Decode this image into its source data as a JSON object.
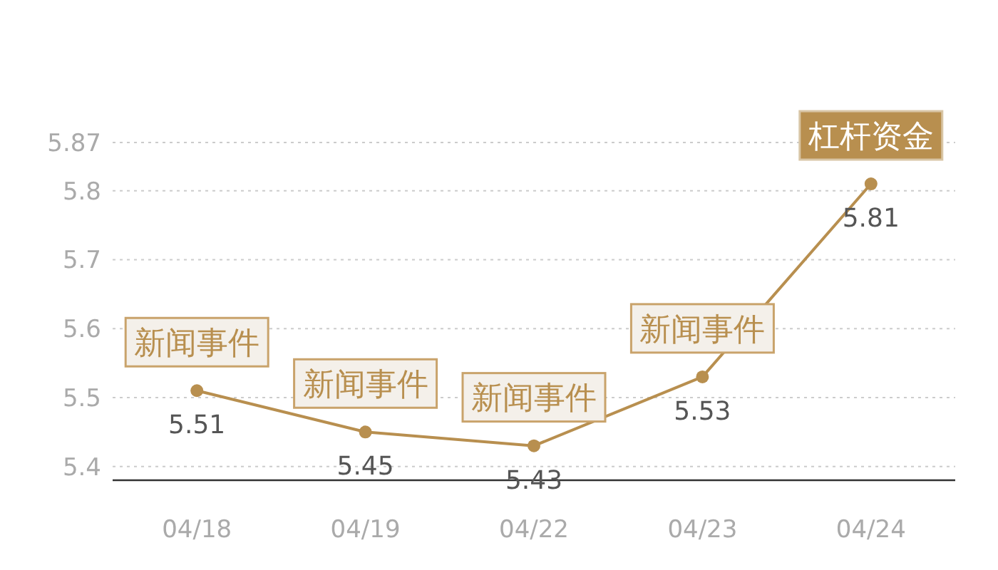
{
  "chart_data": {
    "type": "line",
    "categories": [
      "04/18",
      "04/19",
      "04/22",
      "04/23",
      "04/24"
    ],
    "series": [
      {
        "color": "#b88f4f",
        "values": [
          5.51,
          5.45,
          5.43,
          5.53,
          5.81
        ]
      }
    ],
    "ylim": [
      5.38,
      5.87
    ],
    "yticks": [
      5.4,
      5.5,
      5.6,
      5.7,
      5.8,
      5.87
    ],
    "grid": "y",
    "marker": "circle",
    "data_labels": true,
    "annotations": [
      {
        "text": "新闻事件",
        "x": "04/18",
        "y": 5.51
      },
      {
        "text": "新闻事件",
        "x": "04/19",
        "y": 5.45
      },
      {
        "text": "新闻事件",
        "x": "04/22",
        "y": 5.43
      },
      {
        "text": "新闻事件",
        "x": "04/23",
        "y": 5.53
      },
      {
        "text": "杠杆资金",
        "x": "04/24",
        "y": 5.81
      }
    ]
  }
}
